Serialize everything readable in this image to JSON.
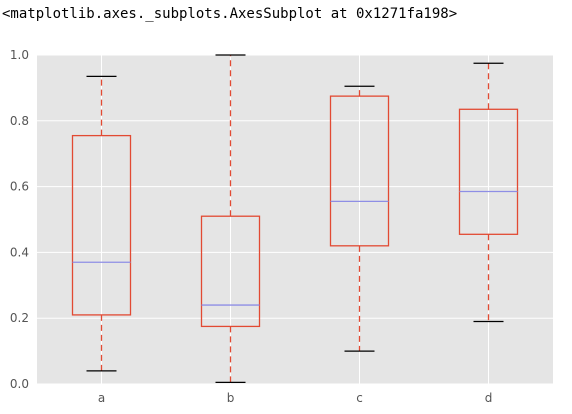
{
  "output": {
    "repr_text": "<matplotlib.axes._subplots.AxesSubplot at 0x1271fa198>"
  },
  "chart_data": {
    "type": "box",
    "categories": [
      "a",
      "b",
      "c",
      "d"
    ],
    "boxes": [
      {
        "name": "a",
        "whislo": 0.04,
        "q1": 0.21,
        "median": 0.37,
        "q3": 0.755,
        "whishi": 0.935
      },
      {
        "name": "b",
        "whislo": 0.005,
        "q1": 0.175,
        "median": 0.24,
        "q3": 0.51,
        "whishi": 1.0
      },
      {
        "name": "c",
        "whislo": 0.1,
        "q1": 0.42,
        "median": 0.555,
        "q3": 0.875,
        "whishi": 0.905
      },
      {
        "name": "d",
        "whislo": 0.19,
        "q1": 0.455,
        "median": 0.585,
        "q3": 0.835,
        "whishi": 0.975
      }
    ],
    "yticks": [
      "0.0",
      "0.2",
      "0.4",
      "0.6",
      "0.8",
      "1.0"
    ],
    "ylim": [
      0.0,
      1.0
    ],
    "grid": true,
    "colors": {
      "background": "#e5e5e5",
      "grid": "#ffffff",
      "box": "#e24a33",
      "median": "#8e8ee5",
      "caps": "#000000"
    }
  }
}
